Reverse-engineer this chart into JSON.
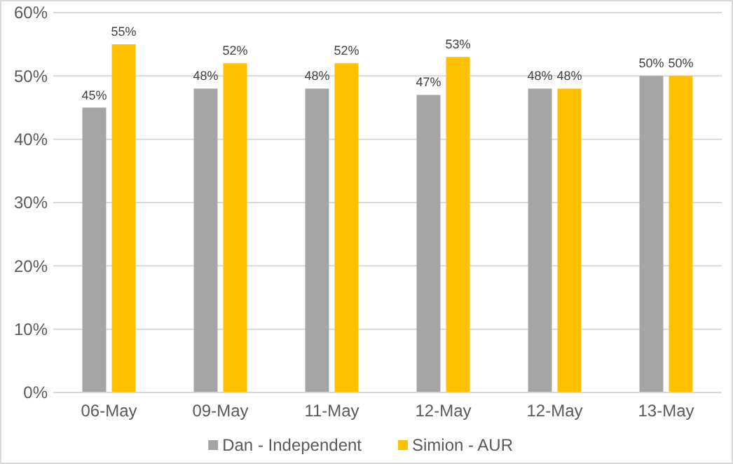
{
  "chart_data": {
    "type": "bar",
    "categories": [
      "06-May",
      "09-May",
      "11-May",
      "12-May",
      "12-May",
      "13-May"
    ],
    "series": [
      {
        "name": "Dan - Independent",
        "color": "#a5a5a5",
        "values": [
          45,
          48,
          48,
          47,
          48,
          50
        ],
        "value_labels": [
          "45%",
          "48%",
          "48%",
          "47%",
          "48%",
          "50%"
        ]
      },
      {
        "name": "Simion - AUR",
        "color": "#ffc000",
        "values": [
          55,
          52,
          52,
          53,
          48,
          50
        ],
        "value_labels": [
          "55%",
          "52%",
          "52%",
          "53%",
          "48%",
          "50%"
        ]
      }
    ],
    "ylim": [
      0,
      60
    ],
    "yticks": [
      {
        "value": 0,
        "label": "0%"
      },
      {
        "value": 10,
        "label": "10%"
      },
      {
        "value": 20,
        "label": "20%"
      },
      {
        "value": 30,
        "label": "30%"
      },
      {
        "value": 40,
        "label": "40%"
      },
      {
        "value": 50,
        "label": "50%"
      },
      {
        "value": 60,
        "label": "60%"
      }
    ],
    "grid": "y",
    "legend": "bottom"
  }
}
